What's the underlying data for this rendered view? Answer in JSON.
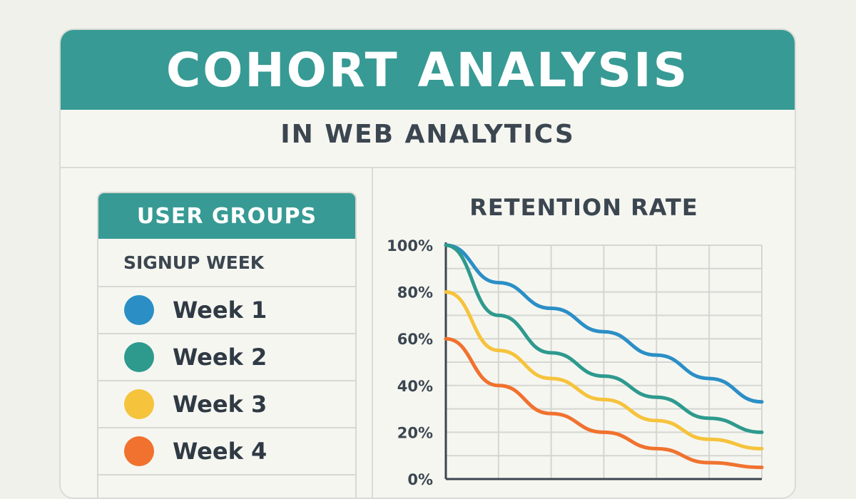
{
  "header": {
    "title": "COHORT ANALYSIS",
    "subtitle": "IN WEB ANALYTICS"
  },
  "legend": {
    "title": "USER GROUPS",
    "subtitle": "SIGNUP WEEK",
    "items": [
      {
        "label": "Week 1",
        "color": "#2b8fc6"
      },
      {
        "label": "Week 2",
        "color": "#2e9a8e"
      },
      {
        "label": "Week 3",
        "color": "#f5c33c"
      },
      {
        "label": "Week 4",
        "color": "#f0722e"
      }
    ]
  },
  "colors": {
    "accent": "#379a94",
    "text": "#3b4650"
  },
  "chart_data": {
    "type": "line",
    "title": "RETENTION RATE",
    "xlabel": "",
    "ylabel": "",
    "y_ticks": [
      "0%",
      "20%",
      "40%",
      "60%",
      "80%",
      "100%"
    ],
    "ylim": [
      0,
      100
    ],
    "xlim": [
      0,
      6
    ],
    "grid": true,
    "x": [
      0,
      1,
      2,
      3,
      4,
      5,
      6
    ],
    "series": [
      {
        "name": "Week 1",
        "color": "#2b8fc6",
        "values": [
          100,
          84,
          73,
          63,
          53,
          43,
          33
        ]
      },
      {
        "name": "Week 2",
        "color": "#2e9a8e",
        "values": [
          100,
          70,
          54,
          44,
          35,
          26,
          20
        ]
      },
      {
        "name": "Week 3",
        "color": "#f5c33c",
        "values": [
          80,
          55,
          43,
          34,
          25,
          17,
          13
        ]
      },
      {
        "name": "Week 4",
        "color": "#f0722e",
        "values": [
          60,
          40,
          28,
          20,
          13,
          7,
          5
        ]
      }
    ]
  }
}
